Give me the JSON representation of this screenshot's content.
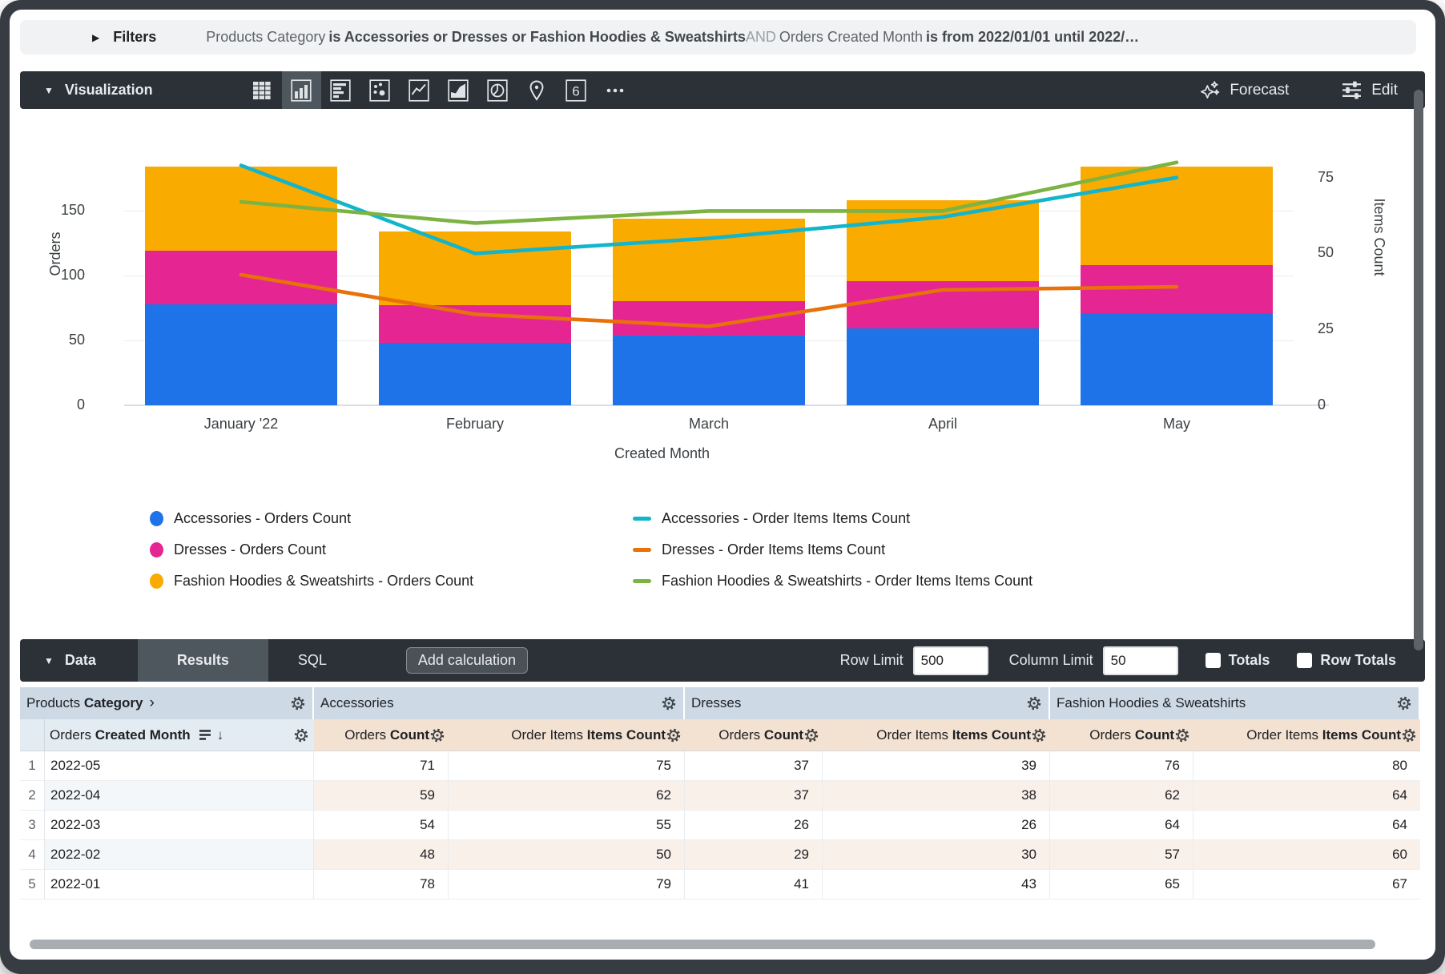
{
  "filters": {
    "label": "Filters",
    "segments": [
      {
        "text": "Products Category",
        "style": "normal"
      },
      {
        "text": "is Accessories or Dresses or Fashion Hoodies & Sweatshirts",
        "style": "bold"
      },
      {
        "text": "AND",
        "style": "muted"
      },
      {
        "text": "Orders Created Month",
        "style": "normal"
      },
      {
        "text": "is from 2022/01/01 until 2022/…",
        "style": "bold"
      }
    ]
  },
  "viz": {
    "label": "Visualization",
    "toolbar_icons": [
      {
        "name": "table-chart-icon",
        "selected": false
      },
      {
        "name": "column-chart-icon",
        "selected": true
      },
      {
        "name": "bar-chart-icon",
        "selected": false
      },
      {
        "name": "scatter-chart-icon",
        "selected": false
      },
      {
        "name": "line-chart-icon",
        "selected": false
      },
      {
        "name": "area-chart-icon",
        "selected": false
      },
      {
        "name": "pie-chart-icon",
        "selected": false
      },
      {
        "name": "map-chart-icon",
        "selected": false
      },
      {
        "name": "single-value-icon",
        "selected": false
      },
      {
        "name": "more-icon",
        "selected": false
      }
    ],
    "forecast_label": "Forecast",
    "edit_label": "Edit"
  },
  "chart_data": {
    "type": "combo",
    "categories": [
      "January '22",
      "February",
      "March",
      "April",
      "May"
    ],
    "x_axis_title": "Created Month",
    "left_axis": {
      "title": "Orders",
      "ticks": [
        0,
        50,
        100,
        150
      ],
      "max": 213
    },
    "right_axis": {
      "title": "Items Count",
      "ticks": [
        0,
        25,
        50,
        75
      ],
      "max": 91
    },
    "bar_series": [
      {
        "name": "Accessories - Orders Count",
        "color": "#1f73e8",
        "values": [
          78,
          48,
          54,
          59,
          71
        ]
      },
      {
        "name": "Dresses - Orders Count",
        "color": "#e52592",
        "values": [
          41,
          29,
          26,
          37,
          37
        ]
      },
      {
        "name": "Fashion Hoodies & Sweatshirts - Orders Count",
        "color": "#f9ab00",
        "values": [
          65,
          57,
          64,
          62,
          76
        ]
      }
    ],
    "line_series": [
      {
        "name": "Accessories - Order Items Items Count",
        "color": "#12b5cb",
        "values": [
          79,
          50,
          55,
          62,
          75
        ]
      },
      {
        "name": "Dresses - Order Items Items Count",
        "color": "#e8710a",
        "values": [
          43,
          30,
          26,
          38,
          39
        ]
      },
      {
        "name": "Fashion Hoodies & Sweatshirts - Order Items Items Count",
        "color": "#7cb342",
        "values": [
          67,
          60,
          64,
          64,
          80
        ]
      }
    ],
    "legend_position": "bottom",
    "grid": true
  },
  "data_section": {
    "label": "Data",
    "tabs": [
      {
        "label": "Results",
        "selected": true
      },
      {
        "label": "SQL",
        "selected": false
      }
    ],
    "add_calculation_label": "Add calculation",
    "row_limit_label": "Row Limit",
    "row_limit_value": "500",
    "column_limit_label": "Column Limit",
    "column_limit_value": "50",
    "totals_label": "Totals",
    "totals_checked": false,
    "row_totals_label": "Row Totals",
    "row_totals_checked": false
  },
  "table": {
    "dimension_group": {
      "prefix": "Products",
      "bold": "Category",
      "chevron": "›"
    },
    "dimension_column": {
      "prefix": "Orders",
      "bold": "Created Month",
      "sort_icon": "sort-bars-icon",
      "arrow": "↓"
    },
    "groups": [
      "Accessories",
      "Dresses",
      "Fashion Hoodies & Sweatshirts"
    ],
    "measure_columns": [
      {
        "prefix": "Orders",
        "bold": "Count"
      },
      {
        "prefix": "Order Items",
        "bold": "Items Count"
      }
    ],
    "rows": [
      {
        "num": "1",
        "month": "2022-05",
        "values": [
          71,
          75,
          37,
          39,
          76,
          80
        ]
      },
      {
        "num": "2",
        "month": "2022-04",
        "values": [
          59,
          62,
          37,
          38,
          62,
          64
        ]
      },
      {
        "num": "3",
        "month": "2022-03",
        "values": [
          54,
          55,
          26,
          26,
          64,
          64
        ]
      },
      {
        "num": "4",
        "month": "2022-02",
        "values": [
          48,
          50,
          29,
          30,
          57,
          60
        ]
      },
      {
        "num": "5",
        "month": "2022-01",
        "values": [
          78,
          79,
          41,
          43,
          65,
          67
        ]
      }
    ]
  },
  "ui_colors": {
    "toolbar_bg": "#2b3137",
    "selected_tile_bg": "#4e565e",
    "filters_bg": "#f0f2f4",
    "group_header_bg": "#cddae6",
    "dimension_header_bg": "#e4ecf3",
    "measure_header_bg": "#f3e2d2",
    "dimension_stripe": "#f4f7f9",
    "measure_stripe": "#faf0ea"
  }
}
